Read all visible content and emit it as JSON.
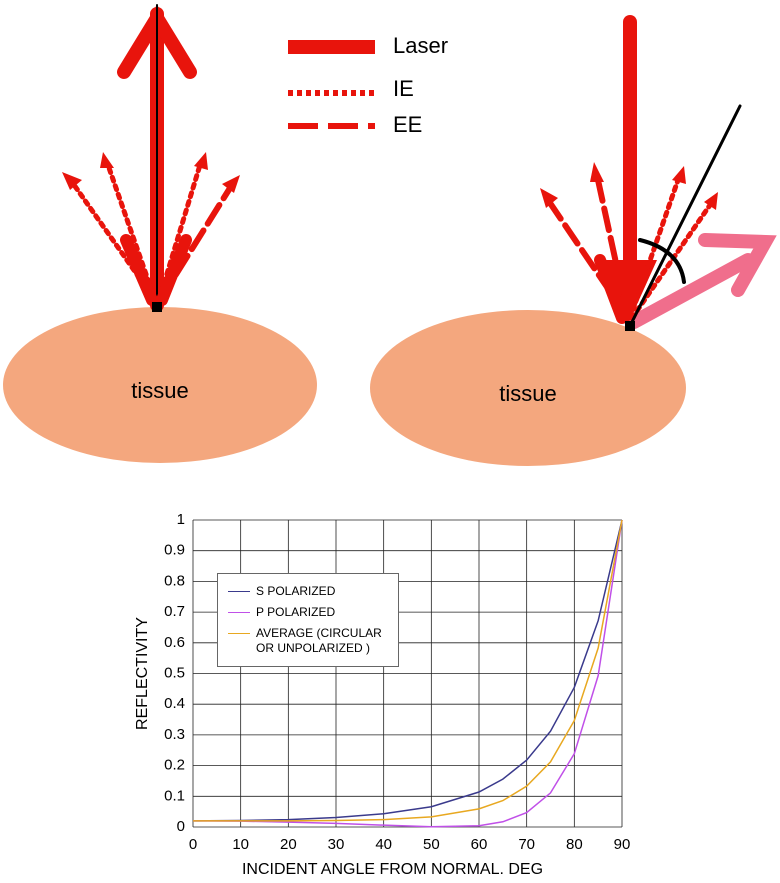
{
  "diagram": {
    "legend": [
      "Laser",
      "IE",
      "EE"
    ],
    "left_label": "tissue",
    "right_label": "tissue"
  },
  "chart_data": {
    "type": "line",
    "xlabel": "INCIDENT ANGLE FROM NORMAL. DEG",
    "ylabel": "REFLECTIVITY",
    "x": [
      0,
      10,
      20,
      30,
      40,
      50,
      60,
      65,
      70,
      75,
      80,
      85,
      90
    ],
    "series": [
      {
        "name": "S POLARIZED",
        "color": "#3a3a8c",
        "values": [
          0.02,
          0.021,
          0.024,
          0.031,
          0.043,
          0.066,
          0.114,
          0.156,
          0.218,
          0.312,
          0.455,
          0.672,
          1
        ]
      },
      {
        "name": "P POLARIZED",
        "color": "#c050e8",
        "values": [
          0.02,
          0.019,
          0.016,
          0.012,
          0.006,
          0.001,
          0.004,
          0.017,
          0.047,
          0.111,
          0.239,
          0.493,
          1
        ]
      },
      {
        "name": "AVERAGE (CIRCULAR\nOR UNPOLARIZED )",
        "color": "#e8a820",
        "values": [
          0.02,
          0.02,
          0.02,
          0.021,
          0.024,
          0.033,
          0.059,
          0.086,
          0.133,
          0.212,
          0.347,
          0.583,
          1
        ]
      }
    ],
    "xlim": [
      0,
      90
    ],
    "xticks": [
      0,
      10,
      20,
      30,
      40,
      50,
      60,
      70,
      80,
      90
    ],
    "ylim": [
      0,
      1
    ],
    "yticks": [
      0,
      0.1,
      0.2,
      0.3,
      0.4,
      0.5,
      0.6,
      0.7,
      0.8,
      0.9,
      1
    ],
    "grid": true
  }
}
